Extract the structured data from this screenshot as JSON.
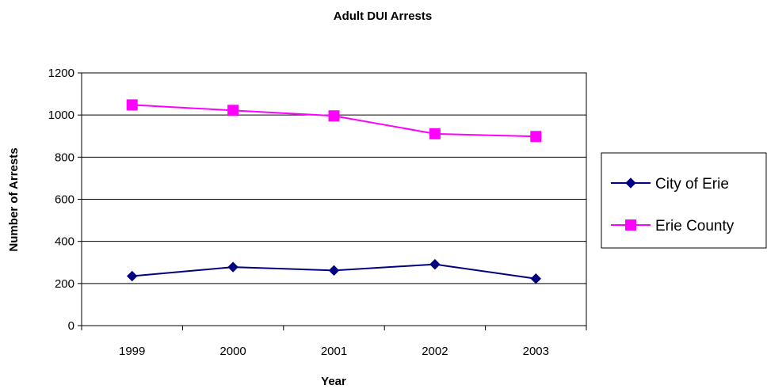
{
  "chart_data": {
    "type": "line",
    "title": "Adult DUI Arrests",
    "xlabel": "Year",
    "ylabel": "Number of Arrests",
    "categories": [
      "1999",
      "2000",
      "2001",
      "2002",
      "2003"
    ],
    "ylim": [
      0,
      1200
    ],
    "yticks": [
      0,
      200,
      400,
      600,
      800,
      1000,
      1200
    ],
    "grid": "horizontal",
    "legend_position": "right",
    "series": [
      {
        "name": "City of Erie",
        "values": [
          235,
          278,
          262,
          291,
          223
        ],
        "color": "#000080",
        "marker": "diamond"
      },
      {
        "name": "Erie County",
        "values": [
          1048,
          1022,
          996,
          911,
          898
        ],
        "color": "#FF00FF",
        "marker": "square"
      }
    ]
  }
}
